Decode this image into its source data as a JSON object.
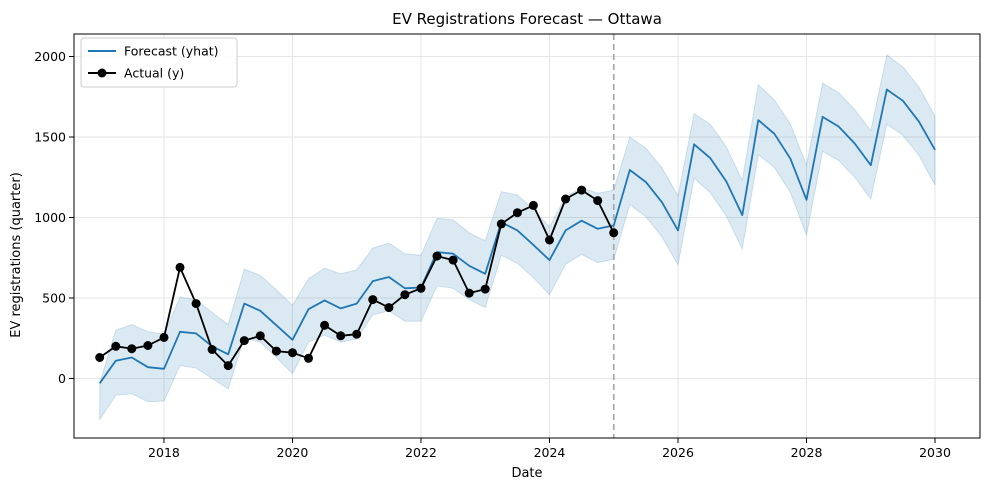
{
  "chart_data": {
    "type": "line",
    "title": "EV Registrations Forecast — Ottawa",
    "xlabel": "Date",
    "ylabel": "EV registrations (quarter)",
    "xlim": [
      2016.6,
      2030.7
    ],
    "ylim": [
      -370,
      2140
    ],
    "x_ticks": [
      2018,
      2020,
      2022,
      2024,
      2026,
      2028,
      2030
    ],
    "y_ticks": [
      0,
      500,
      1000,
      1500,
      2000
    ],
    "grid": true,
    "legend_position": "upper-left",
    "forecast_start": 2025.0,
    "colors": {
      "forecast": "#1f77b4",
      "band": "#1f77b4",
      "actual": "#000000",
      "divider": "#aaaaaa",
      "grid": "#e6e6e6"
    },
    "legend": [
      {
        "label": "Forecast (yhat)",
        "style": "line"
      },
      {
        "label": "Actual (y)",
        "style": "line-marker"
      }
    ],
    "forecast": {
      "name": "Forecast (yhat)",
      "x": [
        2017.0,
        2017.25,
        2017.5,
        2017.75,
        2018.0,
        2018.25,
        2018.5,
        2018.75,
        2019.0,
        2019.25,
        2019.5,
        2019.75,
        2020.0,
        2020.25,
        2020.5,
        2020.75,
        2021.0,
        2021.25,
        2021.5,
        2021.75,
        2022.0,
        2022.25,
        2022.5,
        2022.75,
        2023.0,
        2023.25,
        2023.5,
        2023.75,
        2024.0,
        2024.25,
        2024.5,
        2024.75,
        2025.0,
        2025.25,
        2025.5,
        2025.75,
        2026.0,
        2026.25,
        2026.5,
        2026.75,
        2027.0,
        2027.25,
        2027.5,
        2027.75,
        2028.0,
        2028.25,
        2028.5,
        2028.75,
        2029.0,
        2029.25,
        2029.5,
        2029.75,
        2030.0
      ],
      "y": [
        -30,
        110,
        130,
        70,
        60,
        290,
        280,
        200,
        150,
        465,
        420,
        330,
        240,
        430,
        485,
        435,
        465,
        605,
        630,
        560,
        565,
        785,
        775,
        700,
        650,
        970,
        920,
        830,
        735,
        920,
        980,
        930,
        950,
        1295,
        1220,
        1095,
        920,
        1455,
        1370,
        1225,
        1015,
        1605,
        1520,
        1365,
        1110,
        1625,
        1565,
        1460,
        1325,
        1795,
        1725,
        1595,
        1420
      ]
    },
    "band": {
      "name": "uncertainty",
      "lower": [
        -255,
        -105,
        -95,
        -145,
        -140,
        80,
        65,
        0,
        -65,
        255,
        225,
        130,
        30,
        225,
        270,
        225,
        245,
        395,
        420,
        355,
        355,
        575,
        560,
        490,
        440,
        765,
        715,
        625,
        520,
        710,
        770,
        720,
        740,
        1080,
        1005,
        880,
        705,
        1245,
        1155,
        1010,
        805,
        1390,
        1310,
        1155,
        890,
        1410,
        1355,
        1250,
        1115,
        1580,
        1510,
        1385,
        1200
      ],
      "upper": [
        -30,
        300,
        335,
        290,
        275,
        505,
        490,
        410,
        335,
        680,
        640,
        550,
        455,
        620,
        685,
        650,
        675,
        810,
        840,
        775,
        765,
        995,
        985,
        905,
        855,
        1160,
        1140,
        1050,
        940,
        1130,
        1185,
        1150,
        1170,
        1500,
        1430,
        1310,
        1135,
        1645,
        1580,
        1440,
        1230,
        1825,
        1730,
        1580,
        1325,
        1835,
        1775,
        1670,
        1540,
        2010,
        1935,
        1810,
        1630
      ]
    },
    "actual": {
      "name": "Actual (y)",
      "x": [
        2017.0,
        2017.25,
        2017.5,
        2017.75,
        2018.0,
        2018.25,
        2018.5,
        2018.75,
        2019.0,
        2019.25,
        2019.5,
        2019.75,
        2020.0,
        2020.25,
        2020.5,
        2020.75,
        2021.0,
        2021.25,
        2021.5,
        2021.75,
        2022.0,
        2022.25,
        2022.5,
        2022.75,
        2023.0,
        2023.25,
        2023.5,
        2023.75,
        2024.0,
        2024.25,
        2024.5,
        2024.75,
        2025.0
      ],
      "y": [
        130,
        200,
        185,
        205,
        255,
        690,
        465,
        180,
        80,
        235,
        265,
        170,
        160,
        125,
        330,
        265,
        275,
        490,
        440,
        520,
        560,
        760,
        735,
        530,
        555,
        960,
        1030,
        1075,
        860,
        1115,
        1170,
        1105,
        905
      ]
    }
  }
}
